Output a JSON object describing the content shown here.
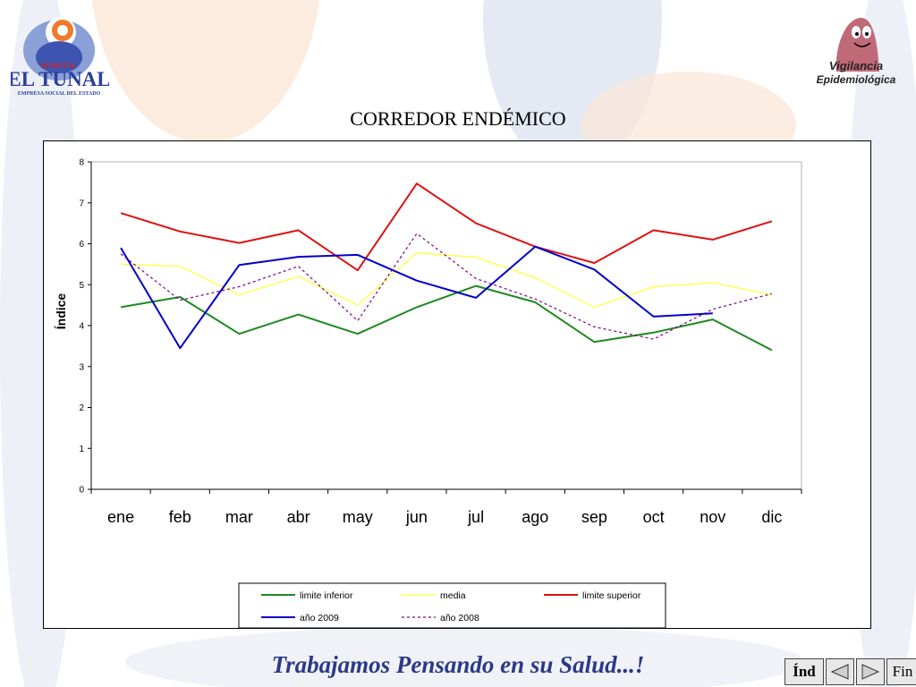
{
  "logo_left": {
    "line1": "HOSPITAL",
    "line2": "EL TUNAL",
    "line3": "EMPRESA SOCIAL DEL ESTADO"
  },
  "logo_right": {
    "line1": "Vigilancia",
    "line2": "Epidemiológica"
  },
  "slide_title": "CORREDOR ENDÉMICO",
  "footer_motto": "Trabajamos Pensando en su Salud...!",
  "nav": {
    "index_label": "Índ",
    "end_label": "Fin"
  },
  "colors": {
    "limite_inferior": "#1f8a1f",
    "media": "#ffff33",
    "limite_superior": "#dd1111",
    "anio_2009": "#0000cc",
    "anio_2008": "#800080"
  },
  "chart_data": {
    "type": "line",
    "title": "",
    "xlabel": "",
    "ylabel": "Índice",
    "ylim": [
      0,
      8
    ],
    "yticks": [
      "0",
      "1",
      "2",
      "3",
      "4",
      "5",
      "6",
      "7",
      "8"
    ],
    "categories": [
      "ene",
      "feb",
      "mar",
      "abr",
      "may",
      "jun",
      "jul",
      "ago",
      "sep",
      "oct",
      "nov",
      "dic"
    ],
    "grid": false,
    "legend_position": "bottom",
    "series": [
      {
        "name": "limite inferior",
        "values": [
          4.45,
          4.7,
          3.8,
          4.27,
          3.8,
          4.45,
          4.97,
          4.57,
          3.6,
          3.83,
          4.15,
          3.4
        ]
      },
      {
        "name": "media",
        "values": [
          5.5,
          5.45,
          4.75,
          5.2,
          4.5,
          5.78,
          5.67,
          5.17,
          4.45,
          4.95,
          5.05,
          4.75
        ]
      },
      {
        "name": "limite superior",
        "values": [
          6.75,
          6.3,
          6.02,
          6.33,
          5.35,
          7.47,
          6.5,
          5.93,
          5.53,
          6.33,
          6.1,
          6.55
        ]
      },
      {
        "name": "año 2009",
        "values": [
          5.9,
          3.45,
          5.48,
          5.68,
          5.73,
          5.1,
          4.68,
          5.93,
          5.37,
          4.22,
          4.3,
          null
        ]
      },
      {
        "name": "año 2008",
        "values": [
          5.75,
          4.62,
          4.95,
          5.45,
          4.12,
          6.25,
          5.15,
          4.65,
          3.97,
          3.67,
          4.4,
          4.78
        ]
      }
    ]
  }
}
